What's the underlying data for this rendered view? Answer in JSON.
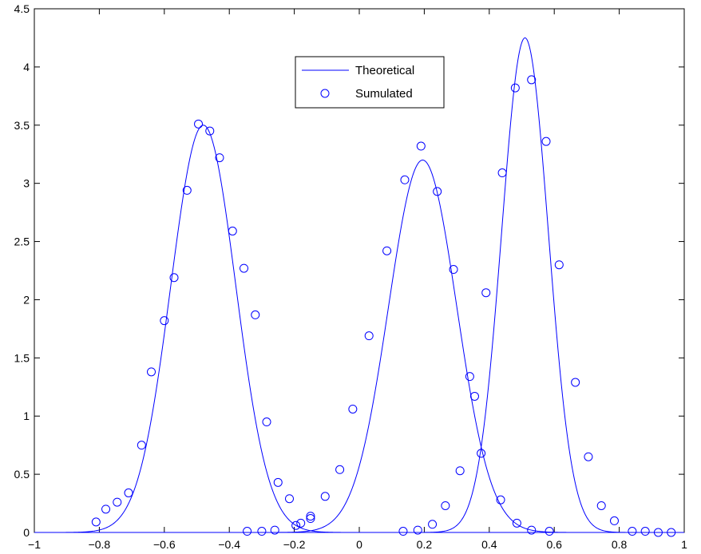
{
  "chart_data": {
    "type": "line",
    "title": "",
    "xlabel": "",
    "ylabel": "",
    "xlim": [
      -1,
      1
    ],
    "ylim": [
      0,
      4.5
    ],
    "xticks": [
      -1,
      -0.8,
      -0.6,
      -0.4,
      -0.2,
      0,
      0.2,
      0.4,
      0.6,
      0.8,
      1
    ],
    "xtick_labels": [
      "−1",
      "−0.8",
      "−0.6",
      "−0.4",
      "−0.2",
      "0",
      "0.2",
      "0.4",
      "0.6",
      "0.8",
      "1"
    ],
    "yticks": [
      0,
      0.5,
      1,
      1.5,
      2,
      2.5,
      3,
      3.5,
      4,
      4.5
    ],
    "ytick_labels": [
      "0",
      "0.5",
      "1",
      "1.5",
      "2",
      "2.5",
      "3",
      "3.5",
      "4",
      "4.5"
    ],
    "grid": false,
    "legend_position": "top-center",
    "colors": {
      "series": "#0000ff",
      "axes": "#000000"
    },
    "series": [
      {
        "name": "Theoretical",
        "style": "line",
        "components": [
          {
            "mean": -0.48,
            "peak": 3.5,
            "sd": 0.1
          },
          {
            "mean": 0.195,
            "peak": 3.2,
            "sd": 0.105
          },
          {
            "mean": 0.51,
            "peak": 4.25,
            "sd": 0.072
          }
        ]
      },
      {
        "name": "Sumulated",
        "style": "marker-circle",
        "points": [
          [
            -0.81,
            0.09
          ],
          [
            -0.78,
            0.2
          ],
          [
            -0.745,
            0.26
          ],
          [
            -0.71,
            0.34
          ],
          [
            -0.67,
            0.75
          ],
          [
            -0.64,
            1.38
          ],
          [
            -0.6,
            1.82
          ],
          [
            -0.57,
            2.19
          ],
          [
            -0.53,
            2.94
          ],
          [
            -0.495,
            3.51
          ],
          [
            -0.46,
            3.45
          ],
          [
            -0.43,
            3.22
          ],
          [
            -0.39,
            2.59
          ],
          [
            -0.355,
            2.27
          ],
          [
            -0.32,
            1.87
          ],
          [
            -0.285,
            0.95
          ],
          [
            -0.25,
            0.43
          ],
          [
            -0.215,
            0.29
          ],
          [
            -0.195,
            0.06
          ],
          [
            -0.18,
            0.08
          ],
          [
            -0.15,
            0.14
          ],
          [
            -0.15,
            0.12
          ],
          [
            -0.345,
            0.01
          ],
          [
            -0.3,
            0.01
          ],
          [
            -0.26,
            0.02
          ],
          [
            -0.105,
            0.31
          ],
          [
            -0.06,
            0.54
          ],
          [
            -0.02,
            1.06
          ],
          [
            0.03,
            1.69
          ],
          [
            0.085,
            2.42
          ],
          [
            0.14,
            3.03
          ],
          [
            0.19,
            3.32
          ],
          [
            0.24,
            2.93
          ],
          [
            0.29,
            2.26
          ],
          [
            0.31,
            0.53
          ],
          [
            0.34,
            1.34
          ],
          [
            0.355,
            1.17
          ],
          [
            0.375,
            0.68
          ],
          [
            0.39,
            2.06
          ],
          [
            0.44,
            3.09
          ],
          [
            0.435,
            0.28
          ],
          [
            0.48,
            3.82
          ],
          [
            0.485,
            0.08
          ],
          [
            0.53,
            3.89
          ],
          [
            0.53,
            0.02
          ],
          [
            0.575,
            3.36
          ],
          [
            0.585,
            0.01
          ],
          [
            0.615,
            2.3
          ],
          [
            0.665,
            1.29
          ],
          [
            0.705,
            0.65
          ],
          [
            0.745,
            0.23
          ],
          [
            0.785,
            0.1
          ],
          [
            0.84,
            0.01
          ],
          [
            0.88,
            0.01
          ],
          [
            0.92,
            0.0
          ],
          [
            0.96,
            0.0
          ],
          [
            0.135,
            0.01
          ],
          [
            0.18,
            0.02
          ],
          [
            0.225,
            0.07
          ],
          [
            0.265,
            0.23
          ]
        ]
      }
    ]
  }
}
